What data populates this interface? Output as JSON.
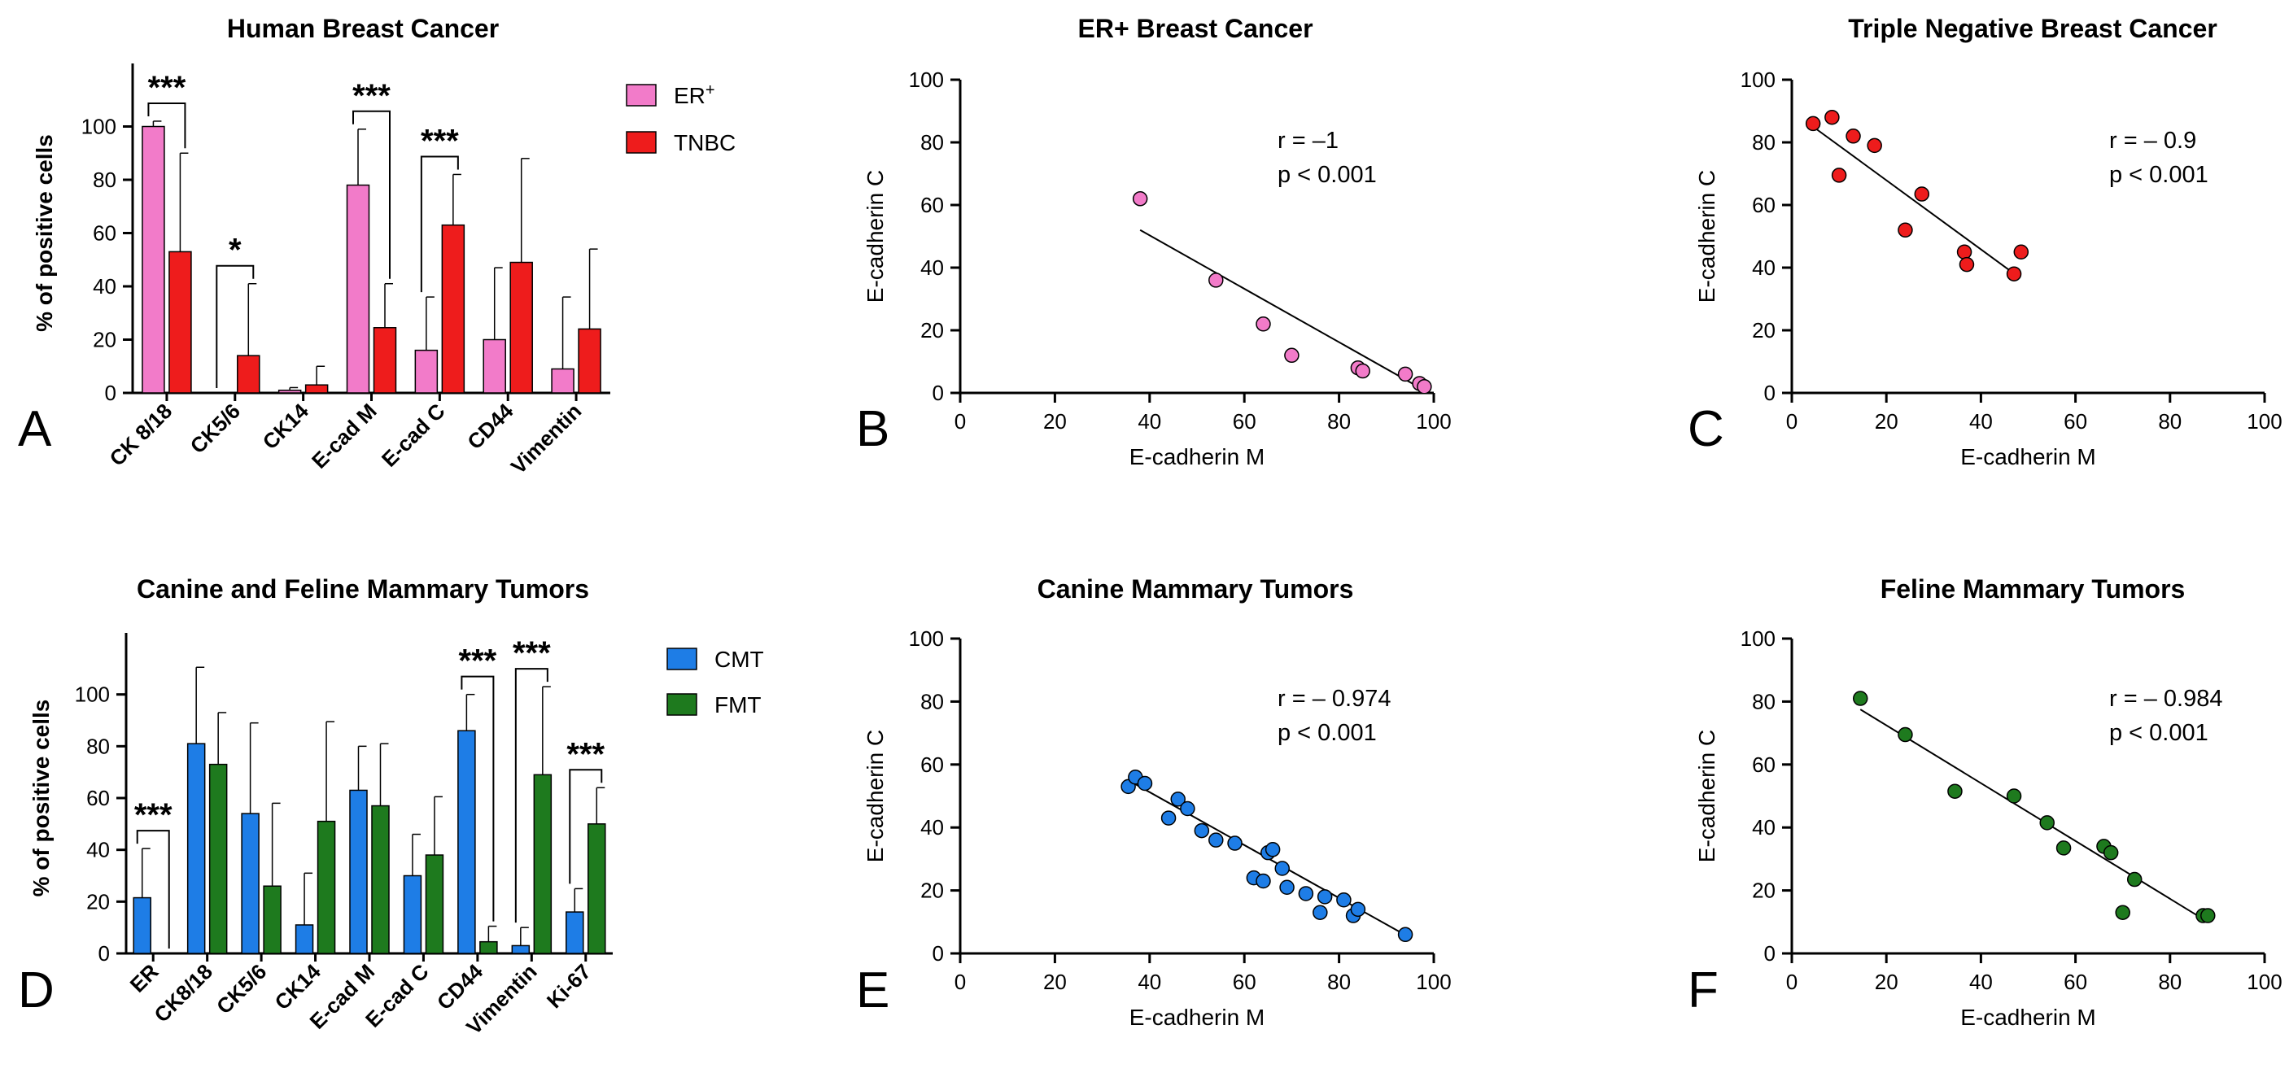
{
  "chart_data": [
    {
      "id": "A",
      "type": "bar",
      "panel_letter": "A",
      "title": "Human Breast Cancer",
      "ylabel": "% of positive cells",
      "ylim": [
        0,
        120
      ],
      "yticks": [
        0,
        20,
        40,
        60,
        80,
        100
      ],
      "categories": [
        "CK 8/18",
        "CK5/6",
        "CK14",
        "E-cad M",
        "E-cad C",
        "CD44",
        "Vimentin"
      ],
      "series": [
        {
          "name": "ER+",
          "legend_main": "ER",
          "legend_sup": "+",
          "color": "#f27bc9",
          "values": [
            100,
            0,
            1,
            78,
            16,
            20,
            9
          ],
          "errors": [
            2,
            0,
            1,
            21,
            20,
            27,
            27
          ]
        },
        {
          "name": "TNBC",
          "legend_main": "TNBC",
          "legend_sup": "",
          "color": "#ee1c1c",
          "values": [
            53,
            14,
            3,
            24.5,
            63,
            49,
            24
          ],
          "errors": [
            37,
            27,
            7,
            16.5,
            19,
            39,
            30
          ]
        }
      ],
      "significance": [
        {
          "category": 0,
          "label": "***"
        },
        {
          "category": 1,
          "label": "*"
        },
        {
          "category": 3,
          "label": "***"
        },
        {
          "category": 4,
          "label": "***"
        }
      ]
    },
    {
      "id": "B",
      "type": "scatter",
      "panel_letter": "B",
      "title": "ER+ Breast Cancer",
      "xlabel": "E-cadherin M",
      "ylabel": "E-cadherin C",
      "xlim": [
        0,
        100
      ],
      "ylim": [
        0,
        100
      ],
      "xticks": [
        0,
        20,
        40,
        60,
        80,
        100
      ],
      "yticks": [
        0,
        20,
        40,
        60,
        80,
        100
      ],
      "color": "#f27bc9",
      "points": [
        [
          38,
          62
        ],
        [
          54,
          36
        ],
        [
          64,
          22
        ],
        [
          70,
          12
        ],
        [
          84,
          8
        ],
        [
          85,
          7
        ],
        [
          94,
          6
        ],
        [
          97,
          3
        ],
        [
          98,
          2
        ]
      ],
      "fit": [
        [
          38,
          52
        ],
        [
          99,
          0
        ]
      ],
      "stat_r": "r = –1",
      "stat_p": "p < 0.001"
    },
    {
      "id": "C",
      "type": "scatter",
      "panel_letter": "C",
      "title": "Triple Negative Breast Cancer",
      "xlabel": "E-cadherin M",
      "ylabel": "E-cadherin C",
      "xlim": [
        0,
        100
      ],
      "ylim": [
        0,
        100
      ],
      "xticks": [
        0,
        20,
        40,
        60,
        80,
        100
      ],
      "yticks": [
        0,
        20,
        40,
        60,
        80,
        100
      ],
      "color": "#ee1c1c",
      "points": [
        [
          4.5,
          86
        ],
        [
          8.5,
          88
        ],
        [
          10,
          69.5
        ],
        [
          13,
          82
        ],
        [
          17.5,
          79
        ],
        [
          24,
          52
        ],
        [
          27.5,
          63.5
        ],
        [
          36.5,
          45
        ],
        [
          37,
          41
        ],
        [
          47,
          38
        ],
        [
          48.5,
          45
        ]
      ],
      "fit": [
        [
          4.5,
          85
        ],
        [
          48,
          37
        ]
      ],
      "stat_r": "r = – 0.9",
      "stat_p": "p < 0.001"
    },
    {
      "id": "D",
      "type": "bar",
      "panel_letter": "D",
      "title": "Canine and Feline Mammary Tumors",
      "ylabel": "% of positive cells",
      "ylim": [
        0,
        120
      ],
      "yticks": [
        0,
        20,
        40,
        60,
        80,
        100
      ],
      "categories": [
        "ER",
        "CK8/18",
        "CK5/6",
        "CK14",
        "E-cad M",
        "E-cad C",
        "CD44",
        "Vimentin",
        "Ki-67"
      ],
      "series": [
        {
          "name": "CMT",
          "legend_main": "CMT",
          "legend_sup": "",
          "color": "#1e7de6",
          "values": [
            21.5,
            81,
            54,
            11,
            63,
            30,
            86,
            3,
            16
          ],
          "errors": [
            19,
            29.5,
            35,
            20,
            17,
            16,
            14,
            7,
            9
          ]
        },
        {
          "name": "FMT",
          "legend_main": "FMT",
          "legend_sup": "",
          "color": "#1e7a1e",
          "values": [
            0,
            73,
            26,
            51,
            57,
            38,
            4.5,
            69,
            50
          ],
          "errors": [
            0,
            20,
            32,
            38.5,
            24,
            22.5,
            6,
            34,
            14
          ]
        }
      ],
      "significance": [
        {
          "category": 0,
          "label": "***"
        },
        {
          "category": 6,
          "label": "***"
        },
        {
          "category": 7,
          "label": "***"
        },
        {
          "category": 8,
          "label": "***"
        }
      ]
    },
    {
      "id": "E",
      "type": "scatter",
      "panel_letter": "E",
      "title": "Canine Mammary Tumors",
      "xlabel": "E-cadherin M",
      "ylabel": "E-cadherin C",
      "xlim": [
        0,
        100
      ],
      "ylim": [
        0,
        100
      ],
      "xticks": [
        0,
        20,
        40,
        60,
        80,
        100
      ],
      "yticks": [
        0,
        20,
        40,
        60,
        80,
        100
      ],
      "color": "#1e7de6",
      "points": [
        [
          35.5,
          53
        ],
        [
          37,
          56
        ],
        [
          39,
          54
        ],
        [
          44,
          43
        ],
        [
          46,
          49
        ],
        [
          48,
          46
        ],
        [
          51,
          39
        ],
        [
          54,
          36
        ],
        [
          58,
          35
        ],
        [
          62,
          24
        ],
        [
          64,
          23
        ],
        [
          65,
          32
        ],
        [
          66,
          33
        ],
        [
          68,
          27
        ],
        [
          69,
          21
        ],
        [
          73,
          19
        ],
        [
          76,
          13
        ],
        [
          77,
          18
        ],
        [
          81,
          17
        ],
        [
          83,
          12
        ],
        [
          84,
          14
        ],
        [
          94,
          6
        ]
      ],
      "fit": [
        [
          35.5,
          55
        ],
        [
          95,
          5
        ]
      ],
      "stat_r": "r = – 0.974",
      "stat_p": "p < 0.001"
    },
    {
      "id": "F",
      "type": "scatter",
      "panel_letter": "F",
      "title": "Feline Mammary Tumors",
      "xlabel": "E-cadherin M",
      "ylabel": "E-cadherin C",
      "xlim": [
        0,
        100
      ],
      "ylim": [
        0,
        100
      ],
      "xticks": [
        0,
        20,
        40,
        60,
        80,
        100
      ],
      "yticks": [
        0,
        20,
        40,
        60,
        80,
        100
      ],
      "color": "#1e7a1e",
      "points": [
        [
          14.5,
          81
        ],
        [
          24,
          69.5
        ],
        [
          34.5,
          51.5
        ],
        [
          47,
          50
        ],
        [
          54,
          41.5
        ],
        [
          57.5,
          33.5
        ],
        [
          66,
          34
        ],
        [
          67.5,
          32
        ],
        [
          70,
          13
        ],
        [
          72.5,
          23.5
        ],
        [
          87,
          12
        ],
        [
          88,
          12
        ]
      ],
      "fit": [
        [
          14.5,
          77.5
        ],
        [
          88,
          10
        ]
      ],
      "stat_r": "r = – 0.984",
      "stat_p": "p < 0.001"
    }
  ]
}
